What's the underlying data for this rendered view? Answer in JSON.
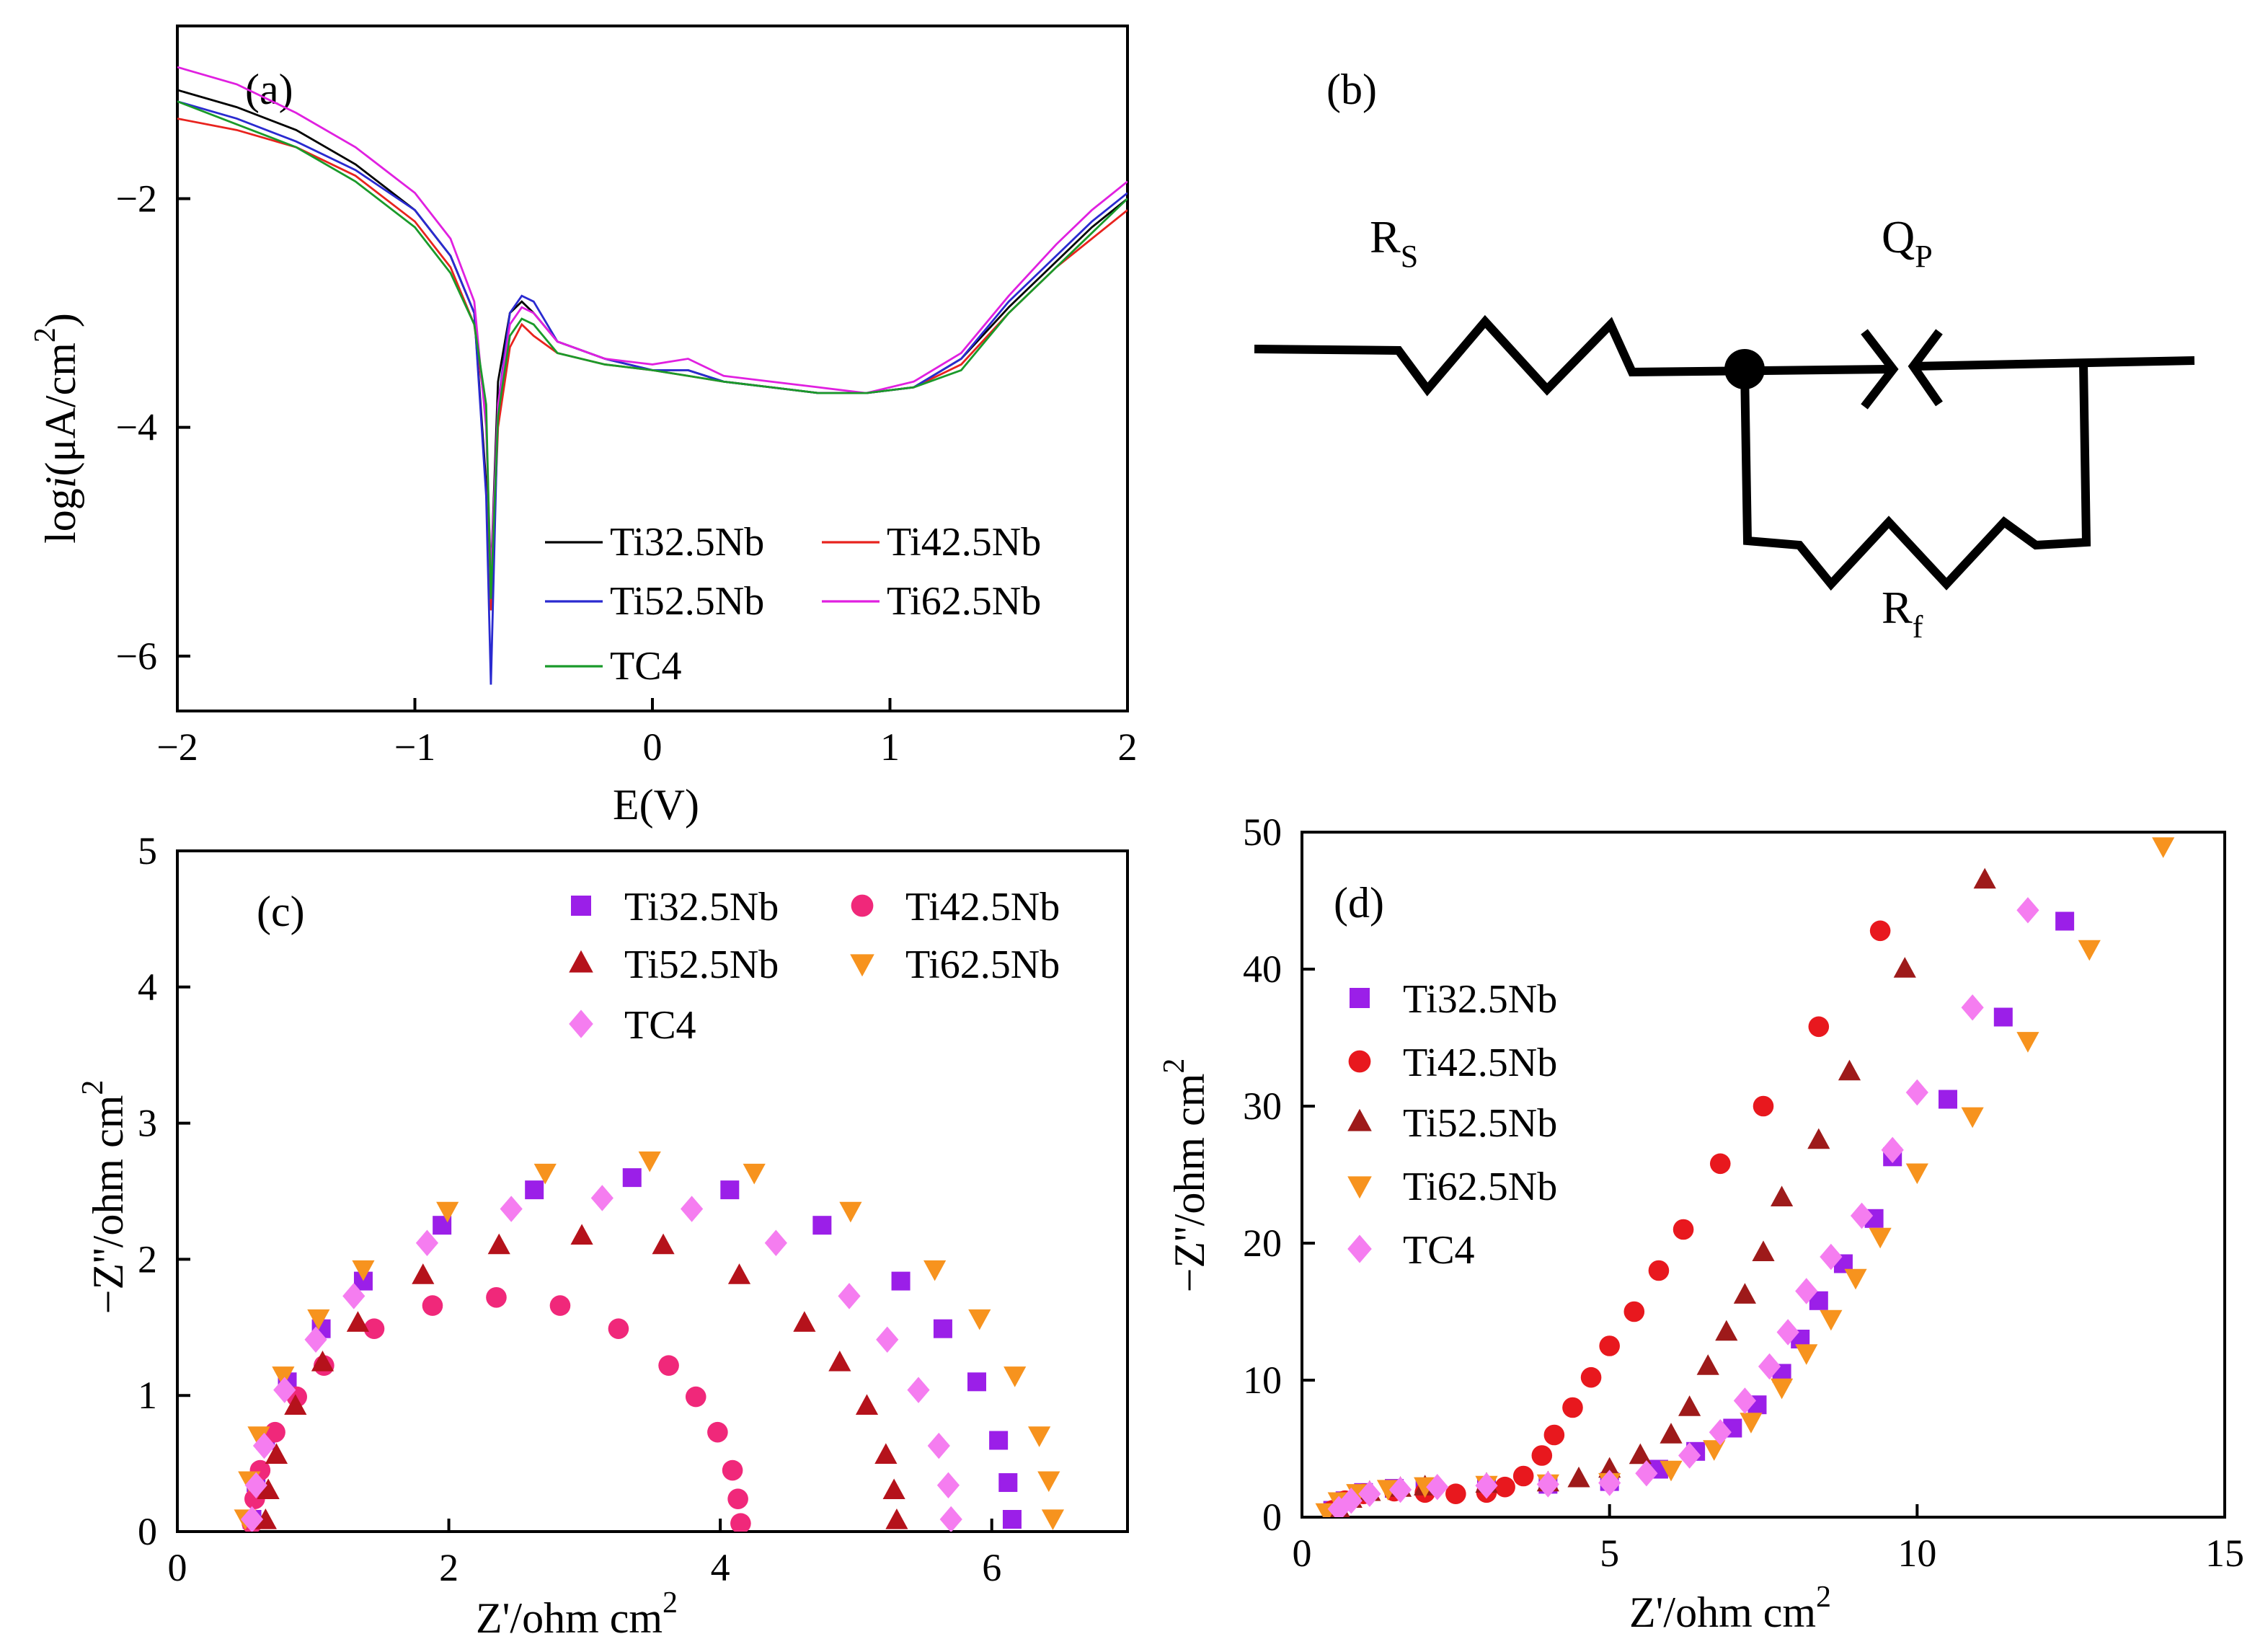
{
  "chart_data": [
    {
      "type": "line",
      "panel_label": "(a)",
      "xlabel": [
        "E(V)"
      ],
      "ylabel": [
        "log",
        "i",
        "(μA/cm",
        "2",
        ")"
      ],
      "xlim": [
        -2,
        2
      ],
      "ylim": [
        -6.48,
        -0.49
      ],
      "xticks": [
        {
          "value": -2,
          "label": "−2"
        },
        {
          "value": -1,
          "label": "−1"
        },
        0,
        1,
        2
      ],
      "yticks": [
        {
          "value": -6,
          "label": "−6"
        },
        {
          "value": -4,
          "label": "−4"
        },
        {
          "value": -2,
          "label": "−2"
        }
      ],
      "legend_columns": 2,
      "x": [
        -2,
        -1.75,
        -1.5,
        -1.25,
        -1,
        -0.85,
        -0.75,
        -0.7,
        -0.68,
        -0.65,
        -0.6,
        -0.55,
        -0.5,
        -0.4,
        -0.2,
        0,
        0.15,
        0.3,
        0.5,
        0.7,
        0.9,
        1.1,
        1.3,
        1.5,
        1.7,
        1.85,
        2
      ],
      "series": [
        {
          "name": "Ti32.5Nb",
          "color": "#000000",
          "values": [
            -1.05,
            -1.2,
            -1.4,
            -1.7,
            -2.1,
            -2.5,
            -3.0,
            -4.5,
            -5.3,
            -3.6,
            -3.0,
            -2.9,
            -3.0,
            -3.25,
            -3.4,
            -3.5,
            -3.5,
            -3.6,
            -3.65,
            -3.7,
            -3.7,
            -3.65,
            -3.4,
            -2.95,
            -2.55,
            -2.25,
            -2.0
          ]
        },
        {
          "name": "Ti42.5Nb",
          "color": "#e8231e",
          "values": [
            -1.3,
            -1.4,
            -1.55,
            -1.8,
            -2.2,
            -2.6,
            -3.1,
            -3.9,
            -5.6,
            -4.0,
            -3.3,
            -3.1,
            -3.2,
            -3.35,
            -3.45,
            -3.5,
            -3.55,
            -3.6,
            -3.65,
            -3.7,
            -3.7,
            -3.65,
            -3.45,
            -3.0,
            -2.6,
            -2.35,
            -2.1
          ]
        },
        {
          "name": "Ti52.5Nb",
          "color": "#2a2ad0",
          "values": [
            -1.15,
            -1.3,
            -1.5,
            -1.75,
            -2.1,
            -2.5,
            -3.0,
            -4.6,
            -6.25,
            -3.8,
            -3.0,
            -2.85,
            -2.9,
            -3.25,
            -3.4,
            -3.5,
            -3.5,
            -3.6,
            -3.65,
            -3.7,
            -3.7,
            -3.65,
            -3.4,
            -2.9,
            -2.5,
            -2.2,
            -1.95
          ]
        },
        {
          "name": "Ti62.5Nb",
          "color": "#e020e0",
          "values": [
            -0.85,
            -1.0,
            -1.25,
            -1.55,
            -1.95,
            -2.35,
            -2.9,
            -4.0,
            -5.3,
            -3.8,
            -3.1,
            -2.95,
            -3.0,
            -3.25,
            -3.4,
            -3.45,
            -3.4,
            -3.55,
            -3.6,
            -3.65,
            -3.7,
            -3.6,
            -3.35,
            -2.85,
            -2.4,
            -2.1,
            -1.85
          ]
        },
        {
          "name": "TC4",
          "color": "#1a9a2a",
          "values": [
            -1.15,
            -1.35,
            -1.55,
            -1.85,
            -2.25,
            -2.65,
            -3.1,
            -3.8,
            -5.5,
            -3.9,
            -3.2,
            -3.05,
            -3.1,
            -3.35,
            -3.45,
            -3.5,
            -3.55,
            -3.6,
            -3.65,
            -3.7,
            -3.7,
            -3.65,
            -3.5,
            -3.0,
            -2.6,
            -2.3,
            -2.0
          ]
        }
      ]
    },
    {
      "type": "scatter",
      "panel_label": "(c)",
      "xlabel": [
        "Z'/ohm cm",
        "2"
      ],
      "ylabel": [
        "−Z''/ohm cm",
        "2"
      ],
      "xlim": [
        0,
        7
      ],
      "ylim": [
        0,
        5
      ],
      "xticks": [
        0,
        2,
        4,
        6
      ],
      "yticks": [
        0,
        1,
        2,
        3,
        4,
        5
      ],
      "legend_columns": 2,
      "series": [
        {
          "name": "Ti32.5Nb",
          "color": "#9b1fe8",
          "marker": "square",
          "x": [
            0.55,
            0.58,
            0.65,
            0.81,
            1.06,
            1.37,
            1.95,
            2.63,
            3.35,
            4.07,
            4.75,
            5.33,
            5.64,
            5.89,
            6.05,
            6.12,
            6.15
          ],
          "values": [
            0.09,
            0.36,
            0.67,
            1.1,
            1.49,
            1.84,
            2.25,
            2.51,
            2.6,
            2.51,
            2.25,
            1.84,
            1.49,
            1.1,
            0.67,
            0.36,
            0.09
          ]
        },
        {
          "name": "Ti42.5Nb",
          "color": "#f0287a",
          "marker": "circle",
          "x": [
            0.55,
            0.57,
            0.61,
            0.72,
            0.88,
            1.08,
            1.45,
            1.88,
            2.35,
            2.82,
            3.25,
            3.62,
            3.82,
            3.98,
            4.09,
            4.13,
            4.15
          ],
          "values": [
            0.06,
            0.24,
            0.45,
            0.73,
            0.99,
            1.22,
            1.49,
            1.66,
            1.72,
            1.66,
            1.49,
            1.22,
            0.99,
            0.73,
            0.45,
            0.24,
            0.06
          ]
        },
        {
          "name": "Ti52.5Nb",
          "color": "#b5121b",
          "marker": "triangle-up",
          "x": [
            0.65,
            0.67,
            0.73,
            0.87,
            1.07,
            1.33,
            1.81,
            2.37,
            2.98,
            3.58,
            4.14,
            4.62,
            4.88,
            5.08,
            5.22,
            5.28,
            5.3
          ],
          "values": [
            0.08,
            0.3,
            0.56,
            0.92,
            1.24,
            1.53,
            1.88,
            2.1,
            2.17,
            2.1,
            1.88,
            1.53,
            1.24,
            0.92,
            0.56,
            0.3,
            0.08
          ]
        },
        {
          "name": "Ti62.5Nb",
          "color": "#f7931e",
          "marker": "triangle-down",
          "x": [
            0.5,
            0.53,
            0.6,
            0.78,
            1.04,
            1.37,
            1.99,
            2.71,
            3.48,
            4.25,
            4.96,
            5.58,
            5.91,
            6.17,
            6.35,
            6.42,
            6.45
          ],
          "values": [
            0.1,
            0.38,
            0.71,
            1.15,
            1.57,
            1.93,
            2.36,
            2.64,
            2.73,
            2.64,
            2.36,
            1.93,
            1.57,
            1.15,
            0.71,
            0.38,
            0.1
          ]
        },
        {
          "name": "TC4",
          "color": "#f57df0",
          "marker": "diamond",
          "x": [
            0.55,
            0.58,
            0.64,
            0.79,
            1.02,
            1.3,
            1.84,
            2.46,
            3.13,
            3.79,
            4.41,
            4.95,
            5.23,
            5.46,
            5.61,
            5.68,
            5.7
          ],
          "values": [
            0.09,
            0.34,
            0.63,
            1.04,
            1.41,
            1.73,
            2.12,
            2.37,
            2.45,
            2.37,
            2.12,
            1.73,
            1.41,
            1.04,
            0.63,
            0.34,
            0.09
          ]
        }
      ]
    },
    {
      "type": "scatter",
      "panel_label": "(d)",
      "xlabel": [
        "Z'/ohm cm",
        "2"
      ],
      "ylabel": [
        "−Z''/ohm cm",
        "2"
      ],
      "xlim": [
        0,
        15
      ],
      "ylim": [
        0,
        50
      ],
      "xticks": [
        0,
        5,
        10,
        15
      ],
      "yticks": [
        0,
        10,
        20,
        30,
        40,
        50
      ],
      "legend_columns": 1,
      "series": [
        {
          "name": "Ti32.5Nb",
          "color": "#9b1fe8",
          "marker": "square",
          "x": [
            0.5,
            0.7,
            1,
            1.5,
            2,
            3,
            4,
            5,
            5.8,
            6.4,
            7,
            7.4,
            7.8,
            8.1,
            8.4,
            8.8,
            9.3,
            9.6,
            10.5,
            11.4,
            12.4
          ],
          "values": [
            0.5,
            1.2,
            1.8,
            2.1,
            2.2,
            2.3,
            2.4,
            2.6,
            3.5,
            4.8,
            6.5,
            8.2,
            10.5,
            13,
            15.8,
            18.5,
            21.8,
            26.3,
            30.5,
            36.5,
            43.5
          ]
        },
        {
          "name": "Ti42.5Nb",
          "color": "#e8181e",
          "marker": "circle",
          "x": [
            0.5,
            0.7,
            1,
            1.5,
            2,
            2.5,
            3,
            3.3,
            3.6,
            3.9,
            4.1,
            4.4,
            4.7,
            5,
            5.4,
            5.8,
            6.2,
            6.8,
            7.5,
            8.4,
            9.4
          ],
          "values": [
            0.5,
            1.2,
            1.7,
            1.9,
            1.8,
            1.7,
            1.8,
            2.2,
            3,
            4.5,
            6,
            8,
            10.2,
            12.5,
            15,
            18,
            21,
            25.8,
            30,
            35.8,
            42.8
          ]
        },
        {
          "name": "Ti52.5Nb",
          "color": "#9e1a1a",
          "marker": "triangle-up",
          "x": [
            0.6,
            0.8,
            1.1,
            1.6,
            2,
            3,
            4,
            4.5,
            5,
            5.5,
            6,
            6.3,
            6.6,
            6.9,
            7.2,
            7.5,
            7.8,
            8.4,
            8.9,
            9.8,
            11.1
          ],
          "values": [
            0.6,
            1.3,
            1.8,
            2.1,
            2.2,
            2.4,
            2.5,
            2.8,
            3.5,
            4.5,
            6,
            8,
            11,
            13.5,
            16.2,
            19.3,
            23.3,
            27.5,
            32.5,
            40,
            46.5
          ]
        },
        {
          "name": "Ti62.5Nb",
          "color": "#f7931e",
          "marker": "triangle-down",
          "x": [
            0.4,
            0.6,
            0.9,
            1.4,
            2,
            3,
            4,
            5,
            6,
            6.7,
            7.3,
            7.8,
            8.2,
            8.6,
            9,
            9.4,
            10,
            10.9,
            11.8,
            12.8,
            14
          ],
          "values": [
            0.4,
            1.2,
            1.8,
            2.1,
            2.3,
            2.4,
            2.5,
            2.6,
            3.5,
            5,
            7,
            9.5,
            12,
            14.5,
            17.5,
            20.5,
            25.2,
            29.3,
            34.8,
            41.5,
            49
          ]
        },
        {
          "name": "TC4",
          "color": "#f57df0",
          "marker": "diamond",
          "x": [
            0.6,
            0.8,
            1.1,
            1.6,
            2.2,
            3,
            4,
            5,
            5.6,
            6.3,
            6.8,
            7.2,
            7.6,
            7.9,
            8.2,
            8.6,
            9.1,
            9.6,
            10,
            10.9,
            11.8
          ],
          "values": [
            0.6,
            1.2,
            1.7,
            2,
            2.2,
            2.3,
            2.4,
            2.5,
            3.2,
            4.5,
            6.2,
            8.5,
            11,
            13.5,
            16.5,
            19,
            22,
            26.8,
            31,
            37.2,
            44.3
          ]
        }
      ]
    }
  ],
  "diagram": {
    "panel_label": "(b)",
    "components": [
      {
        "symbol": "R",
        "subscript": "S"
      },
      {
        "symbol": "Q",
        "subscript": "P"
      },
      {
        "symbol": "R",
        "subscript": "f"
      }
    ]
  }
}
